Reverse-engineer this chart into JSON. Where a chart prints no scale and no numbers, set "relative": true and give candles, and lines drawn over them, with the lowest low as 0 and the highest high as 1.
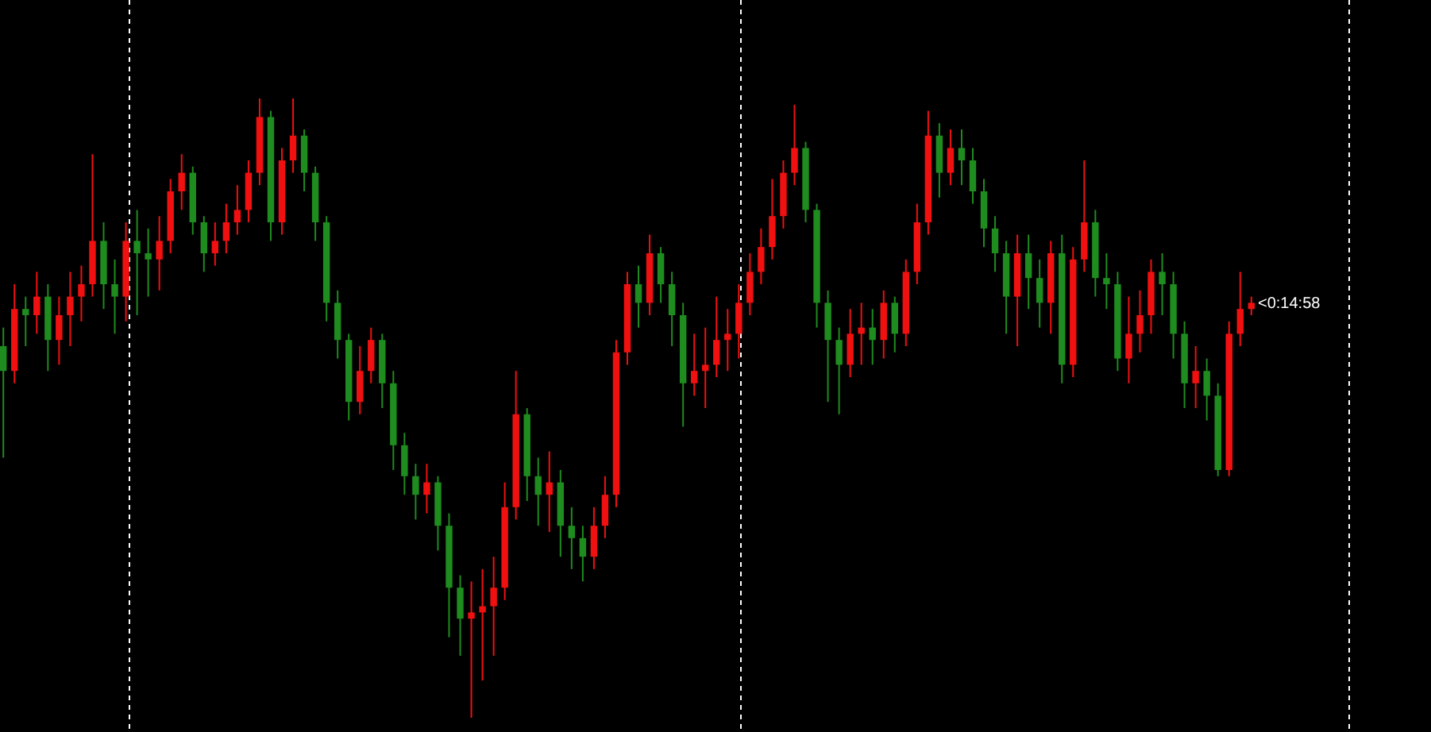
{
  "chart_data": {
    "type": "candlestick",
    "relative": true,
    "categories": [
      null,
      null,
      null,
      null,
      null,
      null,
      null,
      null,
      null,
      null,
      null,
      null,
      null,
      null,
      null,
      null,
      null,
      null,
      null,
      null,
      null,
      null,
      null,
      null,
      null,
      null,
      null,
      null,
      null,
      null,
      null,
      null,
      null,
      null,
      null,
      null,
      null,
      null,
      null,
      null,
      null,
      null,
      null,
      null,
      null,
      null,
      null,
      null,
      null,
      null,
      null,
      null,
      null,
      null,
      null,
      null,
      null,
      null,
      null,
      null,
      null,
      null,
      null,
      null,
      null,
      null,
      null,
      null,
      null,
      null,
      null,
      null,
      null,
      null,
      null,
      null,
      null,
      null,
      null,
      null,
      null,
      null,
      null,
      null,
      null,
      null,
      null,
      null,
      null,
      null,
      null,
      null,
      null,
      null,
      null,
      null,
      null,
      null,
      null,
      null,
      null,
      null,
      null,
      null,
      null,
      null,
      null,
      null,
      null,
      null,
      null,
      null,
      null
    ],
    "ohlc": [
      [
        0.6,
        0.63,
        0.42,
        0.56
      ],
      [
        0.56,
        0.7,
        0.54,
        0.66
      ],
      [
        0.66,
        0.68,
        0.6,
        0.65
      ],
      [
        0.65,
        0.72,
        0.62,
        0.68
      ],
      [
        0.68,
        0.7,
        0.56,
        0.61
      ],
      [
        0.61,
        0.68,
        0.57,
        0.65
      ],
      [
        0.65,
        0.72,
        0.6,
        0.68
      ],
      [
        0.68,
        0.73,
        0.64,
        0.7
      ],
      [
        0.7,
        0.91,
        0.68,
        0.77
      ],
      [
        0.77,
        0.8,
        0.66,
        0.7
      ],
      [
        0.7,
        0.74,
        0.62,
        0.68
      ],
      [
        0.68,
        0.8,
        0.64,
        0.77
      ],
      [
        0.77,
        0.82,
        0.65,
        0.75
      ],
      [
        0.75,
        0.79,
        0.68,
        0.74
      ],
      [
        0.74,
        0.81,
        0.69,
        0.77
      ],
      [
        0.77,
        0.87,
        0.75,
        0.85
      ],
      [
        0.85,
        0.91,
        0.82,
        0.88
      ],
      [
        0.88,
        0.89,
        0.78,
        0.8
      ],
      [
        0.8,
        0.81,
        0.72,
        0.75
      ],
      [
        0.75,
        0.8,
        0.73,
        0.77
      ],
      [
        0.77,
        0.83,
        0.75,
        0.8
      ],
      [
        0.8,
        0.86,
        0.78,
        0.82
      ],
      [
        0.82,
        0.9,
        0.8,
        0.88
      ],
      [
        0.88,
        1.0,
        0.86,
        0.97
      ],
      [
        0.97,
        0.98,
        0.77,
        0.8
      ],
      [
        0.8,
        0.92,
        0.78,
        0.9
      ],
      [
        0.9,
        1.0,
        0.88,
        0.94
      ],
      [
        0.94,
        0.95,
        0.85,
        0.88
      ],
      [
        0.88,
        0.89,
        0.77,
        0.8
      ],
      [
        0.8,
        0.81,
        0.64,
        0.67
      ],
      [
        0.67,
        0.69,
        0.58,
        0.61
      ],
      [
        0.61,
        0.62,
        0.48,
        0.51
      ],
      [
        0.51,
        0.6,
        0.49,
        0.56
      ],
      [
        0.56,
        0.63,
        0.54,
        0.61
      ],
      [
        0.61,
        0.62,
        0.5,
        0.54
      ],
      [
        0.54,
        0.56,
        0.4,
        0.44
      ],
      [
        0.44,
        0.46,
        0.36,
        0.39
      ],
      [
        0.39,
        0.41,
        0.32,
        0.36
      ],
      [
        0.36,
        0.41,
        0.33,
        0.38
      ],
      [
        0.38,
        0.39,
        0.27,
        0.31
      ],
      [
        0.31,
        0.33,
        0.13,
        0.21
      ],
      [
        0.21,
        0.23,
        0.1,
        0.16
      ],
      [
        0.16,
        0.22,
        0.0,
        0.17
      ],
      [
        0.17,
        0.24,
        0.06,
        0.18
      ],
      [
        0.18,
        0.26,
        0.1,
        0.21
      ],
      [
        0.21,
        0.38,
        0.19,
        0.34
      ],
      [
        0.34,
        0.56,
        0.32,
        0.49
      ],
      [
        0.49,
        0.5,
        0.35,
        0.39
      ],
      [
        0.39,
        0.42,
        0.31,
        0.36
      ],
      [
        0.36,
        0.43,
        0.3,
        0.38
      ],
      [
        0.38,
        0.4,
        0.26,
        0.31
      ],
      [
        0.31,
        0.34,
        0.24,
        0.29
      ],
      [
        0.29,
        0.31,
        0.22,
        0.26
      ],
      [
        0.26,
        0.34,
        0.24,
        0.31
      ],
      [
        0.31,
        0.39,
        0.29,
        0.36
      ],
      [
        0.36,
        0.61,
        0.34,
        0.59
      ],
      [
        0.59,
        0.72,
        0.57,
        0.7
      ],
      [
        0.7,
        0.73,
        0.63,
        0.67
      ],
      [
        0.67,
        0.78,
        0.65,
        0.75
      ],
      [
        0.75,
        0.76,
        0.67,
        0.7
      ],
      [
        0.7,
        0.72,
        0.6,
        0.65
      ],
      [
        0.65,
        0.67,
        0.47,
        0.54
      ],
      [
        0.54,
        0.62,
        0.52,
        0.56
      ],
      [
        0.56,
        0.63,
        0.5,
        0.57
      ],
      [
        0.57,
        0.68,
        0.55,
        0.61
      ],
      [
        0.61,
        0.66,
        0.56,
        0.62
      ],
      [
        0.62,
        0.7,
        0.58,
        0.67
      ],
      [
        0.67,
        0.75,
        0.65,
        0.72
      ],
      [
        0.72,
        0.79,
        0.7,
        0.76
      ],
      [
        0.76,
        0.87,
        0.74,
        0.81
      ],
      [
        0.81,
        0.9,
        0.79,
        0.88
      ],
      [
        0.88,
        0.99,
        0.86,
        0.92
      ],
      [
        0.92,
        0.93,
        0.8,
        0.82
      ],
      [
        0.82,
        0.83,
        0.63,
        0.67
      ],
      [
        0.67,
        0.69,
        0.51,
        0.61
      ],
      [
        0.61,
        0.63,
        0.49,
        0.57
      ],
      [
        0.57,
        0.66,
        0.55,
        0.62
      ],
      [
        0.62,
        0.67,
        0.57,
        0.63
      ],
      [
        0.63,
        0.66,
        0.57,
        0.61
      ],
      [
        0.61,
        0.69,
        0.58,
        0.67
      ],
      [
        0.67,
        0.68,
        0.59,
        0.62
      ],
      [
        0.62,
        0.74,
        0.6,
        0.72
      ],
      [
        0.72,
        0.83,
        0.7,
        0.8
      ],
      [
        0.8,
        0.98,
        0.78,
        0.94
      ],
      [
        0.94,
        0.96,
        0.84,
        0.88
      ],
      [
        0.88,
        0.95,
        0.86,
        0.92
      ],
      [
        0.92,
        0.95,
        0.86,
        0.9
      ],
      [
        0.9,
        0.92,
        0.83,
        0.85
      ],
      [
        0.85,
        0.87,
        0.76,
        0.79
      ],
      [
        0.79,
        0.81,
        0.72,
        0.75
      ],
      [
        0.75,
        0.77,
        0.62,
        0.68
      ],
      [
        0.68,
        0.78,
        0.6,
        0.75
      ],
      [
        0.75,
        0.78,
        0.66,
        0.71
      ],
      [
        0.71,
        0.74,
        0.63,
        0.67
      ],
      [
        0.67,
        0.77,
        0.62,
        0.75
      ],
      [
        0.75,
        0.78,
        0.54,
        0.57
      ],
      [
        0.57,
        0.76,
        0.55,
        0.74
      ],
      [
        0.74,
        0.9,
        0.72,
        0.8
      ],
      [
        0.8,
        0.82,
        0.68,
        0.71
      ],
      [
        0.71,
        0.75,
        0.66,
        0.7
      ],
      [
        0.7,
        0.72,
        0.56,
        0.58
      ],
      [
        0.58,
        0.68,
        0.54,
        0.62
      ],
      [
        0.62,
        0.69,
        0.59,
        0.65
      ],
      [
        0.65,
        0.74,
        0.62,
        0.72
      ],
      [
        0.72,
        0.75,
        0.65,
        0.7
      ],
      [
        0.7,
        0.72,
        0.58,
        0.62
      ],
      [
        0.62,
        0.64,
        0.5,
        0.54
      ],
      [
        0.54,
        0.6,
        0.5,
        0.56
      ],
      [
        0.56,
        0.58,
        0.48,
        0.52
      ],
      [
        0.52,
        0.54,
        0.39,
        0.4
      ],
      [
        0.4,
        0.64,
        0.39,
        0.62
      ],
      [
        0.62,
        0.72,
        0.6,
        0.66
      ],
      [
        0.66,
        0.68,
        0.65,
        0.67
      ]
    ],
    "colors": [
      "#1e8c1e",
      "#f01010",
      "#1e8c1e",
      "#f01010",
      "#1e8c1e",
      "#f01010",
      "#f01010",
      "#f01010",
      "#f01010",
      "#1e8c1e",
      "#1e8c1e",
      "#f01010",
      "#1e8c1e",
      "#1e8c1e",
      "#f01010",
      "#f01010",
      "#f01010",
      "#1e8c1e",
      "#1e8c1e",
      "#f01010",
      "#f01010",
      "#f01010",
      "#f01010",
      "#f01010",
      "#1e8c1e",
      "#f01010",
      "#f01010",
      "#1e8c1e",
      "#1e8c1e",
      "#1e8c1e",
      "#1e8c1e",
      "#1e8c1e",
      "#f01010",
      "#f01010",
      "#1e8c1e",
      "#1e8c1e",
      "#1e8c1e",
      "#1e8c1e",
      "#f01010",
      "#1e8c1e",
      "#1e8c1e",
      "#1e8c1e",
      "#f01010",
      "#f01010",
      "#f01010",
      "#f01010",
      "#f01010",
      "#1e8c1e",
      "#1e8c1e",
      "#f01010",
      "#1e8c1e",
      "#1e8c1e",
      "#1e8c1e",
      "#f01010",
      "#f01010",
      "#f01010",
      "#f01010",
      "#1e8c1e",
      "#f01010",
      "#1e8c1e",
      "#1e8c1e",
      "#1e8c1e",
      "#f01010",
      "#f01010",
      "#f01010",
      "#f01010",
      "#f01010",
      "#f01010",
      "#f01010",
      "#f01010",
      "#f01010",
      "#f01010",
      "#1e8c1e",
      "#1e8c1e",
      "#1e8c1e",
      "#1e8c1e",
      "#f01010",
      "#f01010",
      "#1e8c1e",
      "#f01010",
      "#1e8c1e",
      "#f01010",
      "#f01010",
      "#f01010",
      "#1e8c1e",
      "#f01010",
      "#1e8c1e",
      "#1e8c1e",
      "#1e8c1e",
      "#1e8c1e",
      "#1e8c1e",
      "#f01010",
      "#1e8c1e",
      "#1e8c1e",
      "#f01010",
      "#1e8c1e",
      "#f01010",
      "#f01010",
      "#1e8c1e",
      "#1e8c1e",
      "#1e8c1e",
      "#f01010",
      "#f01010",
      "#f01010",
      "#1e8c1e",
      "#1e8c1e",
      "#1e8c1e",
      "#f01010",
      "#1e8c1e",
      "#1e8c1e",
      "#f01010",
      "#f01010",
      "#f01010"
    ],
    "annotations": [
      "<0:14:58"
    ]
  }
}
